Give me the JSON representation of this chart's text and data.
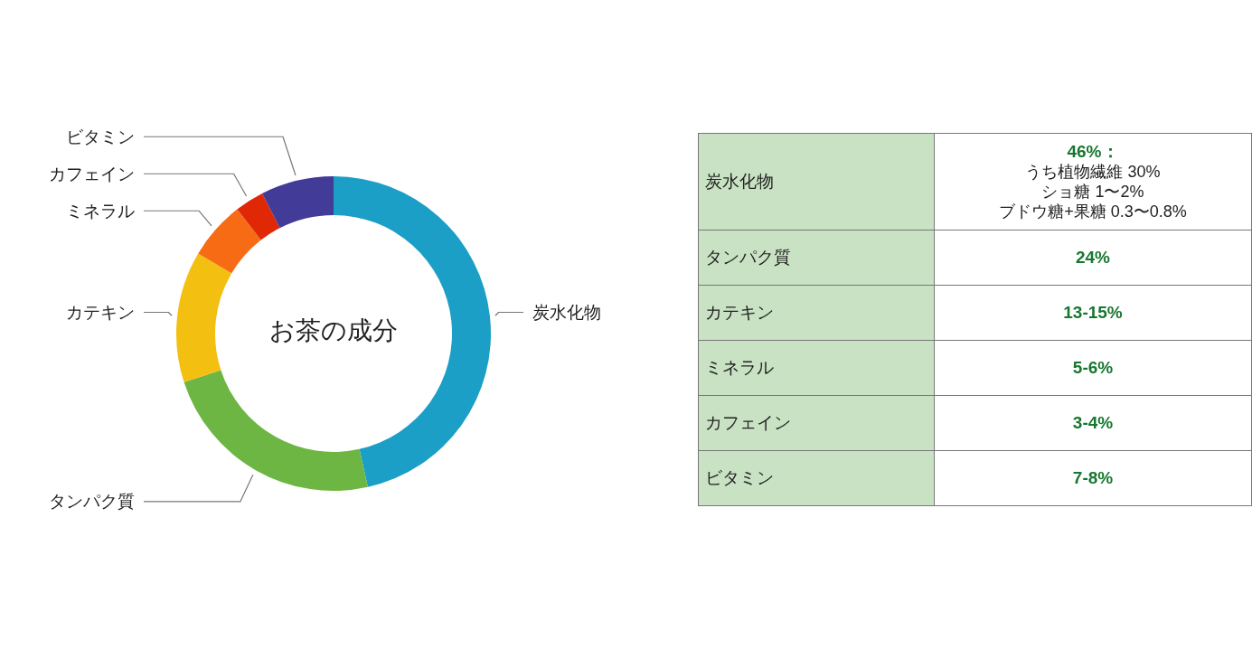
{
  "chart_data": [
    {
      "type": "donut",
      "title": "お茶の成分",
      "categories": [
        "炭水化物",
        "タンパク質",
        "カテキン",
        "ミネラル",
        "カフェイン",
        "ビタミン"
      ],
      "values": [
        46.5,
        23.5,
        13.5,
        6,
        3,
        7.5
      ],
      "colors": [
        "#1b9fc6",
        "#6db644",
        "#f3bf10",
        "#f76b15",
        "#e02807",
        "#423b97"
      ]
    },
    {
      "type": "other",
      "categories": [
        "炭水化物",
        "タンパク質",
        "カテキン",
        "ミネラル",
        "カフェイン",
        "ビタミン"
      ],
      "value_labels": [
        "46%：",
        "24%",
        "13-15%",
        "5-6%",
        "3-4%",
        "7-8%"
      ],
      "annotations": [
        "うち植物繊維 30%",
        "ショ糖 1〜2%",
        "ブドウ糖+果糖 0.3〜0.8%"
      ]
    }
  ]
}
